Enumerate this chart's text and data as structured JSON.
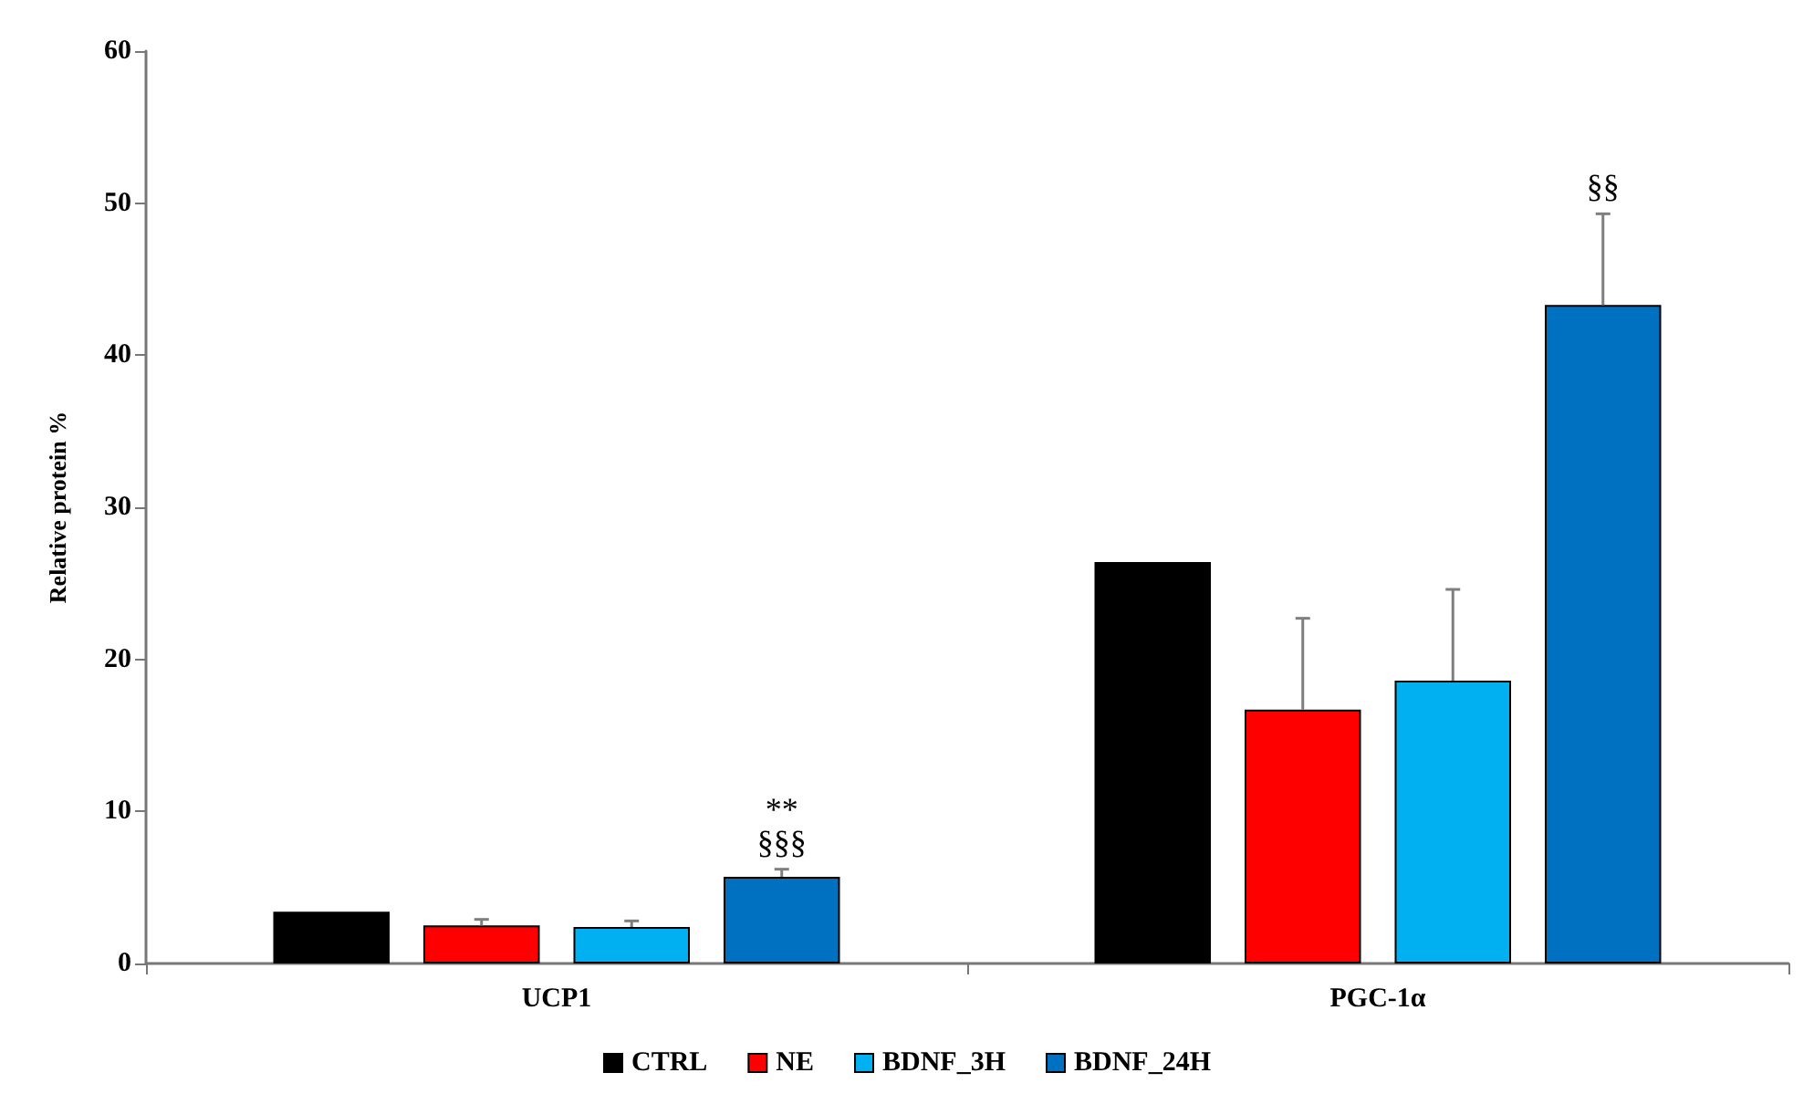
{
  "chart_data": {
    "type": "bar",
    "ylabel": "Relative protein %",
    "categories": [
      "UCP1",
      "PGC-1α"
    ],
    "series": [
      {
        "name": "CTRL",
        "color": "#000000",
        "values": [
          3.4,
          26.4
        ],
        "errors": [
          null,
          null
        ]
      },
      {
        "name": "NE",
        "color": "#ff0000",
        "values": [
          2.5,
          16.7
        ],
        "errors": [
          [
            2.5,
            2.9
          ],
          [
            16.7,
            22.7
          ]
        ]
      },
      {
        "name": "BDNF_3H",
        "color": "#00b0f0",
        "values": [
          2.4,
          18.6
        ],
        "errors": [
          [
            2.4,
            2.8
          ],
          [
            18.6,
            24.6
          ]
        ]
      },
      {
        "name": "BDNF_24H",
        "color": "#0070c0",
        "values": [
          5.7,
          43.3
        ],
        "errors": [
          [
            5.7,
            6.2
          ],
          [
            43.3,
            49.3
          ]
        ],
        "value_labels": [
          "**\n§§§",
          "§§"
        ]
      }
    ],
    "ylim": [
      0,
      60
    ],
    "yticks": [
      0,
      10,
      20,
      30,
      40,
      50,
      60
    ],
    "grid": false,
    "legend": "bottom"
  }
}
